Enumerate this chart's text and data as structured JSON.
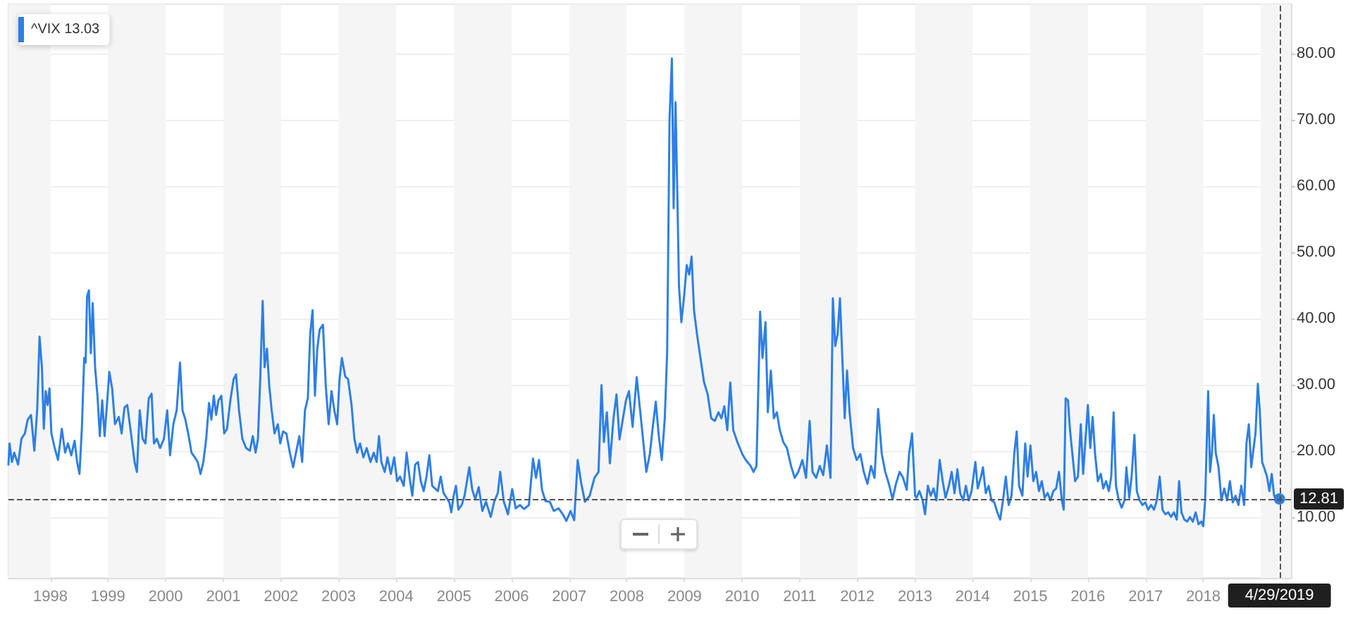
{
  "chart_data": {
    "type": "line",
    "xlim": [
      "1997-04-10",
      "2019-07-11"
    ],
    "xticks": [
      "1998",
      "1999",
      "2000",
      "2001",
      "2002",
      "2003",
      "2004",
      "2005",
      "2006",
      "2007",
      "2008",
      "2009",
      "2010",
      "2011",
      "2012",
      "2013",
      "2014",
      "2015",
      "2016",
      "2017",
      "2018"
    ],
    "ylim": [
      0.9,
      87.5
    ],
    "yticks": [
      {
        "value": 10,
        "label": "10.00"
      },
      {
        "value": 20,
        "label": "20.00"
      },
      {
        "value": 30,
        "label": "30.00"
      },
      {
        "value": 40,
        "label": "40.00"
      },
      {
        "value": 50,
        "label": "50.00"
      },
      {
        "value": 60,
        "label": "60.00"
      },
      {
        "value": 70,
        "label": "70.00"
      },
      {
        "value": 80,
        "label": "80.00"
      }
    ],
    "grid": "y",
    "legend": "top left",
    "marker": "none",
    "line_style": "solid",
    "bands": [
      {
        "axis": "x",
        "from": "1997-04-10",
        "to": "1998",
        "color": "#f5f5f5"
      },
      {
        "axis": "x",
        "from": "1999",
        "to": "2000",
        "color": "#f5f5f5"
      },
      {
        "axis": "x",
        "from": "2001",
        "to": "2002",
        "color": "#f5f5f5"
      },
      {
        "axis": "x",
        "from": "2003",
        "to": "2004",
        "color": "#f5f5f5"
      },
      {
        "axis": "x",
        "from": "2005",
        "to": "2006",
        "color": "#f5f5f5"
      },
      {
        "axis": "x",
        "from": "2007",
        "to": "2008",
        "color": "#f5f5f5"
      },
      {
        "axis": "x",
        "from": "2009",
        "to": "2010",
        "color": "#f5f5f5"
      },
      {
        "axis": "x",
        "from": "2011",
        "to": "2012",
        "color": "#f5f5f5"
      },
      {
        "axis": "x",
        "from": "2013",
        "to": "2014",
        "color": "#f5f5f5"
      },
      {
        "axis": "x",
        "from": "2015",
        "to": "2016",
        "color": "#f5f5f5"
      },
      {
        "axis": "x",
        "from": "2017",
        "to": "2018",
        "color": "#f5f5f5"
      },
      {
        "axis": "x",
        "from": "2019",
        "to": "2019-07-11",
        "color": "#f5f5f5"
      }
    ],
    "ref_lines": [
      {
        "axis": "y",
        "value": 12.81,
        "label": "12.81",
        "color": "#555555",
        "line_style": "dashed"
      },
      {
        "axis": "x",
        "value": "2019-04-29",
        "label": "4/29/2019",
        "color": "#555555",
        "line_style": "dashed"
      }
    ],
    "series": [
      {
        "name": "^VIX 13.03",
        "color": "#2d7fe6",
        "x": [
          "1997-04-10",
          "1997-04-17",
          "1997-05-02",
          "1997-05-17",
          "1997-06-10",
          "1997-07-01",
          "1997-07-23",
          "1997-08-10",
          "1997-08-31",
          "1997-09-21",
          "1997-10-09",
          "1997-10-24",
          "1997-11-08",
          "1997-11-20",
          "1997-12-02",
          "1997-12-14",
          "1997-12-26",
          "1998-01-07",
          "1998-01-28",
          "1998-02-18",
          "1998-03-14",
          "1998-04-04",
          "1998-04-22",
          "1998-05-13",
          "1998-06-03",
          "1998-06-19",
          "1998-07-04",
          "1998-07-19",
          "1998-08-03",
          "1998-08-12",
          "1998-08-21",
          "1998-09-02",
          "1998-09-14",
          "1998-09-26",
          "1998-10-11",
          "1998-10-26",
          "1998-11-10",
          "1998-11-25",
          "1998-12-10",
          "1998-12-25",
          "1999-01-09",
          "1999-01-27",
          "1999-02-14",
          "1999-03-10",
          "1999-03-28",
          "1999-04-15",
          "1999-05-03",
          "1999-05-25",
          "1999-06-18",
          "1999-07-03",
          "1999-07-21",
          "1999-08-08",
          "1999-08-26",
          "1999-09-16",
          "1999-10-04",
          "1999-10-19",
          "1999-11-06",
          "1999-11-27",
          "1999-12-21",
          "2000-01-11",
          "2000-01-29",
          "2000-02-19",
          "2000-03-11",
          "2000-04-01",
          "2000-04-17",
          "2000-05-05",
          "2000-05-23",
          "2000-06-13",
          "2000-07-04",
          "2000-07-22",
          "2000-08-09",
          "2000-08-27",
          "2000-09-14",
          "2000-10-02",
          "2000-10-17",
          "2000-11-01",
          "2000-11-16",
          "2000-12-01",
          "2000-12-19",
          "2001-01-06",
          "2001-01-24",
          "2001-02-14",
          "2001-03-07",
          "2001-03-22",
          "2001-04-10",
          "2001-05-01",
          "2001-05-25",
          "2001-06-18",
          "2001-07-06",
          "2001-07-24",
          "2001-08-08",
          "2001-08-23",
          "2001-09-07",
          "2001-09-19",
          "2001-10-04",
          "2001-10-19",
          "2001-11-03",
          "2001-11-21",
          "2001-12-12",
          "2001-12-27",
          "2002-01-14",
          "2002-02-04",
          "2002-02-26",
          "2002-03-19",
          "2002-04-06",
          "2002-04-27",
          "2002-05-15",
          "2002-06-02",
          "2002-06-20",
          "2002-07-05",
          "2002-07-20",
          "2002-08-04",
          "2002-08-19",
          "2002-09-03",
          "2002-09-24",
          "2002-10-12",
          "2002-10-30",
          "2002-11-17",
          "2002-12-05",
          "2002-12-23",
          "2003-01-07",
          "2003-01-22",
          "2003-02-12",
          "2003-03-02",
          "2003-03-24",
          "2003-04-11",
          "2003-04-29",
          "2003-05-17",
          "2003-06-07",
          "2003-06-28",
          "2003-07-22",
          "2003-08-12",
          "2003-08-30",
          "2003-09-14",
          "2003-09-29",
          "2003-10-20",
          "2003-11-07",
          "2003-11-28",
          "2003-12-19",
          "2004-01-07",
          "2004-01-25",
          "2004-02-18",
          "2004-03-07",
          "2004-03-25",
          "2004-04-12",
          "2004-04-30",
          "2004-05-18",
          "2004-06-05",
          "2004-06-23",
          "2004-07-11",
          "2004-07-29",
          "2004-08-16",
          "2004-09-03",
          "2004-09-21",
          "2004-10-09",
          "2004-10-27",
          "2004-11-15",
          "2004-12-03",
          "2004-12-15",
          "2004-12-30",
          "2005-01-14",
          "2005-01-29",
          "2005-02-19",
          "2005-03-09",
          "2005-04-08",
          "2005-04-27",
          "2005-05-16",
          "2005-06-07",
          "2005-06-30",
          "2005-07-23",
          "2005-08-22",
          "2005-09-13",
          "2005-10-06",
          "2005-10-21",
          "2005-11-13",
          "2005-12-09",
          "2006-01-05",
          "2006-01-27",
          "2006-02-23",
          "2006-03-21",
          "2006-04-21",
          "2006-05-17",
          "2006-06-05",
          "2006-06-24",
          "2006-07-13",
          "2006-08-04",
          "2006-08-31",
          "2006-09-26",
          "2006-10-26",
          "2006-11-22",
          "2006-12-14",
          "2007-01-10",
          "2007-02-02",
          "2007-02-24",
          "2007-03-19",
          "2007-04-11",
          "2007-05-11",
          "2007-06-10",
          "2007-07-06",
          "2007-07-25",
          "2007-08-09",
          "2007-08-28",
          "2007-09-16",
          "2007-10-09",
          "2007-10-28",
          "2007-11-16",
          "2007-12-08",
          "2007-12-27",
          "2008-01-15",
          "2008-02-07",
          "2008-03-04",
          "2008-03-23",
          "2008-04-15",
          "2008-05-04",
          "2008-05-26",
          "2008-06-14",
          "2008-07-03",
          "2008-07-22",
          "2008-08-10",
          "2008-08-29",
          "2008-09-13",
          "2008-09-28",
          "2008-10-13",
          "2008-10-24",
          "2008-11-05",
          "2008-11-16",
          "2008-11-27",
          "2008-12-12",
          "2008-12-28",
          "2009-01-15",
          "2009-01-31",
          "2009-02-15",
          "2009-03-02",
          "2009-03-21",
          "2009-04-12",
          "2009-05-05",
          "2009-05-28",
          "2009-06-19",
          "2009-07-12",
          "2009-08-04",
          "2009-08-23",
          "2009-09-10",
          "2009-09-29",
          "2009-10-18",
          "2009-11-06",
          "2009-12-02",
          "2010-01-02",
          "2010-01-24",
          "2010-02-24",
          "2010-03-14",
          "2010-04-02",
          "2010-04-25",
          "2010-05-10",
          "2010-05-29",
          "2010-06-13",
          "2010-07-02",
          "2010-07-21",
          "2010-08-09",
          "2010-08-28",
          "2010-09-19",
          "2010-10-12",
          "2010-11-07",
          "2010-11-30",
          "2010-12-23",
          "2011-01-18",
          "2011-02-10",
          "2011-03-05",
          "2011-03-23",
          "2011-04-15",
          "2011-05-08",
          "2011-05-30",
          "2011-06-22",
          "2011-07-15",
          "2011-07-30",
          "2011-08-14",
          "2011-08-29",
          "2011-09-13",
          "2011-09-28",
          "2011-10-13",
          "2011-10-28",
          "2011-11-13",
          "2011-12-05",
          "2011-12-28",
          "2012-01-20",
          "2012-02-11",
          "2012-03-05",
          "2012-03-28",
          "2012-04-19",
          "2012-05-12",
          "2012-06-04",
          "2012-06-26",
          "2012-07-19",
          "2012-08-11",
          "2012-09-02",
          "2012-09-25",
          "2012-10-17",
          "2012-11-09",
          "2012-11-24",
          "2012-12-13",
          "2013-01-01",
          "2013-01-10",
          "2013-01-28",
          "2013-02-18",
          "2013-03-05",
          "2013-03-23",
          "2013-04-10",
          "2013-04-28",
          "2013-05-16",
          "2013-06-06",
          "2013-06-25",
          "2013-07-13",
          "2013-08-03",
          "2013-08-21",
          "2013-09-08",
          "2013-09-26",
          "2013-10-14",
          "2013-11-01",
          "2013-11-19",
          "2013-12-07",
          "2013-12-25",
          "2014-01-18",
          "2014-02-02",
          "2014-02-23",
          "2014-03-07",
          "2014-03-25",
          "2014-04-12",
          "2014-04-30",
          "2014-05-18",
          "2014-06-06",
          "2014-06-24",
          "2014-07-12",
          "2014-07-30",
          "2014-08-17",
          "2014-09-04",
          "2014-09-22",
          "2014-10-07",
          "2014-10-22",
          "2014-11-12",
          "2014-11-30",
          "2014-12-15",
          "2015-01-02",
          "2015-01-20",
          "2015-02-07",
          "2015-02-25",
          "2015-03-15",
          "2015-04-02",
          "2015-04-21",
          "2015-05-09",
          "2015-05-27",
          "2015-06-14",
          "2015-07-02",
          "2015-07-20",
          "2015-08-01",
          "2015-08-13",
          "2015-08-28",
          "2015-09-09",
          "2015-09-24",
          "2015-10-12",
          "2015-10-30",
          "2015-11-17",
          "2015-12-02",
          "2015-12-17",
          "2016-01-01",
          "2016-01-16",
          "2016-01-31",
          "2016-02-15",
          "2016-03-04",
          "2016-03-23",
          "2016-04-07",
          "2016-04-25",
          "2016-05-13",
          "2016-05-28",
          "2016-06-12",
          "2016-06-27",
          "2016-07-15",
          "2016-08-02",
          "2016-08-20",
          "2016-09-01",
          "2016-09-19",
          "2016-10-04",
          "2016-10-22",
          "2016-11-06",
          "2016-11-24",
          "2016-12-12",
          "2016-12-30",
          "2017-01-17",
          "2017-02-04",
          "2017-02-23",
          "2017-03-13",
          "2017-03-31",
          "2017-04-18",
          "2017-05-06",
          "2017-05-24",
          "2017-06-11",
          "2017-06-29",
          "2017-07-17",
          "2017-08-01",
          "2017-08-16",
          "2017-09-03",
          "2017-09-21",
          "2017-10-09",
          "2017-10-27",
          "2017-11-14",
          "2017-12-02",
          "2017-12-20",
          "2018-01-01",
          "2018-01-13",
          "2018-02-01",
          "2018-02-13",
          "2018-02-25",
          "2018-03-09",
          "2018-03-21",
          "2018-04-08",
          "2018-04-26",
          "2018-05-14",
          "2018-06-01",
          "2018-06-19",
          "2018-07-07",
          "2018-07-25",
          "2018-08-12",
          "2018-08-30",
          "2018-09-17",
          "2018-10-02",
          "2018-10-17",
          "2018-11-01",
          "2018-11-16",
          "2018-11-28",
          "2018-12-13",
          "2018-12-25",
          "2019-01-09",
          "2019-01-25",
          "2019-02-09",
          "2019-02-24",
          "2019-03-11",
          "2019-03-26",
          "2019-04-10",
          "2019-04-29"
        ],
        "values": [
          18.0,
          21.2,
          18.4,
          19.8,
          18.0,
          21.9,
          22.7,
          24.8,
          25.5,
          20.1,
          26.2,
          37.3,
          32.7,
          23.4,
          29.1,
          27.0,
          29.5,
          22.7,
          20.5,
          18.7,
          23.4,
          19.8,
          21.2,
          19.4,
          21.6,
          18.4,
          16.6,
          23.4,
          34.1,
          33.4,
          43.4,
          44.3,
          34.8,
          42.4,
          32.7,
          28.4,
          22.3,
          27.7,
          22.3,
          27.0,
          32.0,
          29.5,
          24.1,
          25.2,
          22.7,
          26.6,
          27.0,
          23.0,
          18.4,
          16.9,
          26.2,
          21.9,
          21.2,
          28.0,
          28.7,
          21.2,
          21.9,
          20.5,
          21.9,
          26.2,
          19.4,
          24.1,
          26.2,
          33.4,
          26.2,
          24.8,
          22.7,
          19.8,
          19.1,
          18.4,
          16.6,
          18.4,
          21.9,
          27.3,
          24.8,
          28.4,
          25.5,
          27.7,
          28.4,
          22.7,
          23.4,
          27.7,
          30.9,
          31.6,
          26.2,
          21.9,
          20.5,
          20.1,
          22.3,
          19.8,
          21.9,
          31.3,
          42.7,
          32.7,
          35.5,
          29.8,
          26.2,
          22.7,
          24.1,
          21.2,
          23.0,
          22.7,
          19.8,
          17.6,
          19.8,
          22.3,
          18.4,
          26.2,
          28.0,
          37.7,
          41.3,
          28.4,
          35.5,
          38.4,
          39.1,
          29.8,
          24.1,
          29.1,
          26.2,
          24.1,
          30.9,
          34.1,
          31.3,
          30.9,
          27.0,
          21.9,
          19.8,
          21.2,
          19.1,
          20.5,
          18.4,
          19.8,
          18.4,
          22.3,
          18.4,
          16.9,
          19.1,
          16.6,
          19.1,
          15.5,
          16.2,
          14.8,
          19.8,
          16.2,
          13.3,
          18.0,
          18.4,
          15.5,
          14.0,
          16.2,
          19.4,
          14.8,
          14.4,
          14.0,
          16.2,
          13.7,
          13.0,
          12.3,
          10.8,
          13.3,
          14.8,
          11.2,
          11.9,
          13.3,
          17.6,
          14.2,
          12.8,
          14.6,
          11.0,
          12.4,
          10.1,
          12.4,
          13.7,
          16.9,
          12.4,
          10.5,
          14.3,
          11.4,
          11.9,
          11.3,
          11.9,
          18.9,
          16.0,
          18.7,
          14.2,
          12.5,
          12.4,
          11.0,
          11.4,
          10.5,
          9.5,
          11.0,
          9.6,
          18.7,
          15.1,
          12.4,
          13.3,
          16.0,
          16.9,
          30.0,
          21.4,
          25.9,
          18.2,
          25.0,
          28.6,
          21.8,
          25.0,
          27.7,
          29.1,
          23.7,
          31.2,
          26.8,
          21.4,
          16.9,
          19.6,
          23.7,
          27.5,
          22.3,
          18.7,
          25.0,
          35.0,
          70.2,
          79.3,
          56.7,
          72.7,
          59.4,
          44.9,
          39.5,
          43.1,
          48.1,
          46.7,
          49.4,
          41.3,
          37.7,
          34.1,
          30.4,
          28.6,
          25.0,
          24.6,
          25.9,
          25.0,
          26.8,
          23.2,
          30.4,
          23.2,
          21.4,
          19.6,
          18.7,
          17.8,
          16.9,
          17.8,
          41.1,
          34.1,
          39.5,
          25.9,
          32.2,
          25.0,
          25.9,
          23.2,
          21.4,
          20.5,
          17.8,
          16.0,
          16.9,
          18.7,
          16.0,
          24.6,
          16.9,
          16.0,
          17.8,
          16.4,
          20.9,
          16.0,
          43.1,
          35.9,
          37.7,
          43.1,
          34.1,
          25.0,
          32.2,
          25.9,
          20.5,
          18.7,
          19.6,
          16.9,
          15.1,
          17.8,
          16.0,
          26.4,
          19.6,
          16.9,
          15.1,
          12.8,
          15.1,
          16.9,
          16.0,
          14.2,
          19.6,
          22.7,
          13.3,
          13.0,
          14.0,
          12.6,
          10.5,
          14.8,
          13.3,
          14.4,
          12.6,
          18.7,
          15.5,
          13.0,
          14.8,
          16.9,
          13.7,
          17.3,
          13.7,
          12.6,
          14.8,
          12.6,
          14.0,
          18.4,
          14.4,
          16.2,
          17.6,
          13.7,
          14.8,
          12.6,
          12.3,
          10.8,
          9.7,
          12.6,
          16.2,
          11.9,
          13.3,
          19.8,
          23.0,
          14.8,
          13.3,
          21.2,
          16.2,
          20.9,
          15.5,
          16.9,
          14.0,
          15.5,
          13.0,
          13.7,
          12.6,
          14.0,
          14.4,
          16.9,
          12.6,
          11.2,
          28.0,
          27.7,
          23.4,
          19.8,
          15.5,
          16.2,
          24.1,
          16.6,
          21.9,
          27.0,
          20.5,
          25.2,
          19.8,
          15.5,
          16.6,
          14.4,
          15.5,
          14.0,
          16.2,
          25.9,
          14.8,
          12.6,
          11.5,
          12.6,
          17.6,
          13.0,
          16.2,
          22.5,
          14.0,
          12.6,
          11.9,
          12.3,
          11.2,
          11.9,
          11.2,
          12.6,
          16.2,
          11.2,
          10.5,
          10.8,
          10.1,
          10.8,
          9.7,
          15.5,
          10.8,
          9.7,
          9.4,
          10.1,
          9.4,
          10.8,
          9.0,
          9.4,
          8.7,
          12.6,
          29.1,
          16.9,
          19.8,
          25.5,
          19.8,
          17.6,
          12.6,
          14.4,
          12.6,
          15.5,
          12.3,
          13.3,
          11.9,
          14.8,
          11.9,
          21.2,
          24.1,
          17.6,
          20.5,
          22.7,
          30.2,
          26.2,
          18.4,
          17.3,
          16.2,
          14.0,
          16.6,
          13.3,
          12.8,
          12.81
        ]
      },
      {
        "type": "scatter",
        "color": "#2d7fe6",
        "marker": "circle",
        "x": [
          "2019-04-29"
        ],
        "values": [
          12.81
        ]
      }
    ]
  }
}
